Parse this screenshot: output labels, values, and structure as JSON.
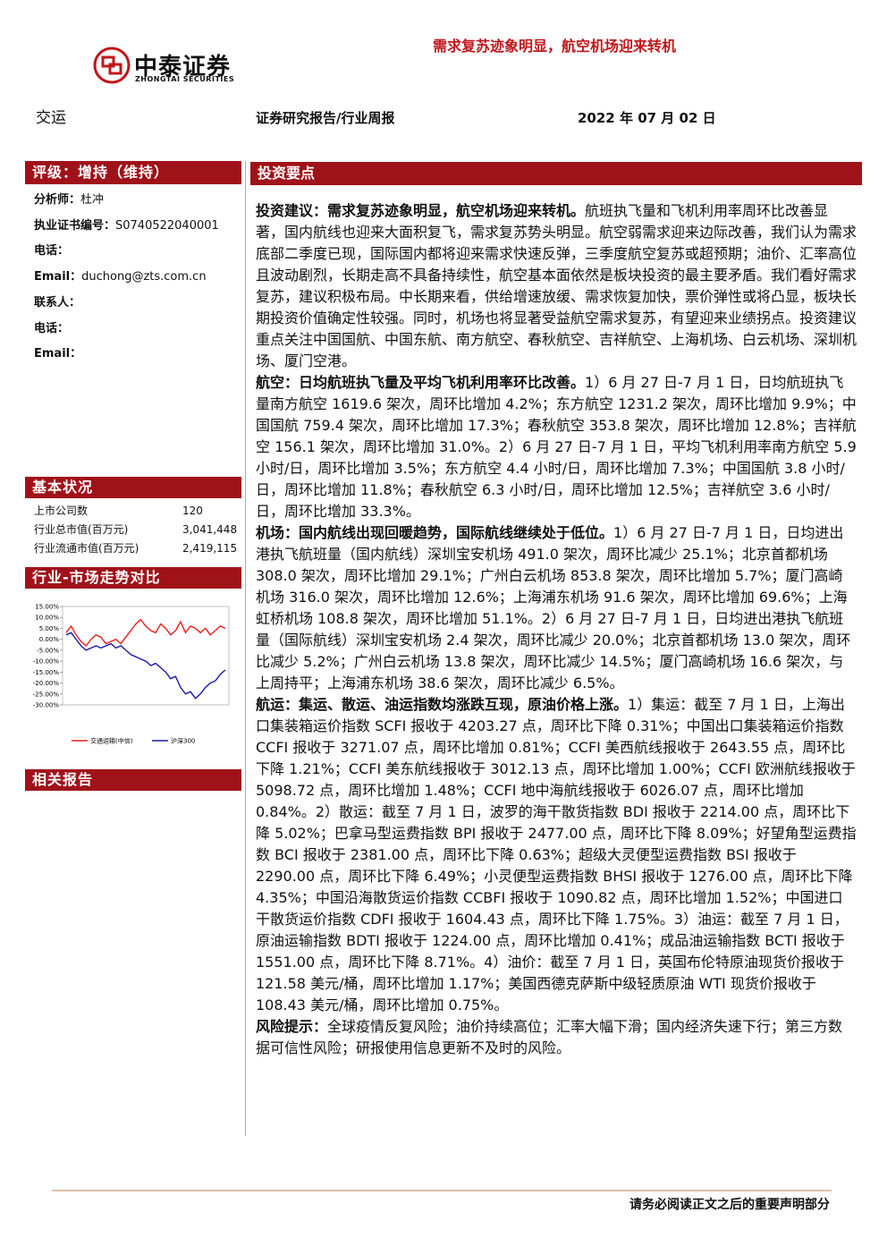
{
  "header": {
    "logo": "中泰证券",
    "logo_en": "ZHONGTAI SECURITIES",
    "headline": "需求复苏迹象明显，航空机场迎来转机",
    "sector": "交运",
    "report_type": "证券研究报告/行业周报",
    "date": "2022 年 07 月 02 日"
  },
  "sidebar": {
    "rating": "评级：增持（维持）",
    "contacts": [
      {
        "label": "分析师：",
        "value": "杜冲"
      },
      {
        "label": "执业证书编号：",
        "value": "S0740522040001"
      },
      {
        "label": "电话：",
        "value": ""
      },
      {
        "label": "Email：",
        "value": "duchong@zts.com.cn"
      },
      {
        "label": "联系人：",
        "value": ""
      },
      {
        "label": "电话：",
        "value": ""
      },
      {
        "label": "Email：",
        "value": ""
      }
    ],
    "basic_title": "基本状况",
    "basic_rows": [
      [
        "上市公司数",
        "120"
      ],
      [
        "行业总市值(百万元)",
        "3,041,448"
      ],
      [
        "行业流通市值(百万元)",
        "2,419,115"
      ]
    ],
    "chart_title": "行业-市场走势对比",
    "related_title": "相关报告"
  },
  "chart_data": {
    "type": "line",
    "ylim": [
      -30,
      15
    ],
    "yticks": [
      {
        "value": 15,
        "label": "15.00%"
      },
      {
        "value": 10,
        "label": "10.00%"
      },
      {
        "value": 5,
        "label": "5.00%"
      },
      {
        "value": 0,
        "label": "0.00%"
      },
      {
        "value": -5,
        "label": "-5.00%"
      },
      {
        "value": -10,
        "label": "-10.00%"
      },
      {
        "value": -15,
        "label": "-15.00%"
      },
      {
        "value": -20,
        "label": "-20.00%"
      },
      {
        "value": -25,
        "label": "-25.00%"
      },
      {
        "value": -30,
        "label": "-30.00%"
      }
    ],
    "series": [
      {
        "name": "交通运输(中信)",
        "color": "#e8201c",
        "values": [
          3,
          6,
          2,
          -1,
          -3,
          0,
          2,
          1,
          -2,
          -1,
          0,
          -2,
          1,
          4,
          7,
          9,
          6,
          4,
          3,
          7,
          5,
          2,
          4,
          8,
          3,
          6,
          5,
          3,
          5,
          2,
          4,
          6,
          5
        ]
      },
      {
        "name": "沪深300",
        "color": "#1a1aa8",
        "values": [
          2,
          3,
          0,
          -3,
          -5,
          -4,
          -3,
          -4,
          -3,
          -2,
          -4,
          -3,
          -5,
          -7,
          -8,
          -9,
          -10,
          -12,
          -11,
          -13,
          -15,
          -18,
          -17,
          -22,
          -25,
          -24,
          -27,
          -25,
          -22,
          -20,
          -19,
          -16,
          -14
        ]
      }
    ]
  },
  "main": {
    "section_title": "投资要点",
    "bullets": [
      {
        "lead": "投资建议：需求复苏迹象明显，航空机场迎来转机。",
        "text": "航班执飞量和飞机利用率周环比改善显著，国内航线也迎来大面积复飞，需求复苏势头明显。航空弱需求迎来边际改善，我们认为需求底部二季度已现，国际国内都将迎来需求快速反弹，三季度航空复苏或超预期；油价、汇率高位且波动剧烈，长期走高不具备持续性，航空基本面依然是板块投资的最主要矛盾。我们看好需求复苏，建议积极布局。中长期来看，供给增速放缓、需求恢复加快，票价弹性或将凸显，板块长期投资价值确定性较强。同时，机场也将显著受益航空需求复苏，有望迎来业绩拐点。投资建议重点关注中国国航、中国东航、南方航空、春秋航空、吉祥航空、上海机场、白云机场、深圳机场、厦门空港。"
      },
      {
        "lead": "航空：日均航班执飞量及平均飞机利用率环比改善。",
        "text": "1）6 月 27 日-7 月 1 日，日均航班执飞量南方航空 1619.6 架次，周环比增加 4.2%；东方航空 1231.2 架次，周环比增加 9.9%；中国国航 759.4 架次，周环比增加 17.3%；春秋航空 353.8 架次，周环比增加 12.8%；吉祥航空 156.1 架次，周环比增加 31.0%。2）6 月 27 日-7 月 1 日，平均飞机利用率南方航空 5.9 小时/日，周环比增加 3.5%；东方航空 4.4 小时/日，周环比增加 7.3%；中国国航 3.8 小时/日，周环比增加 11.8%；春秋航空 6.3 小时/日，周环比增加 12.5%；吉祥航空 3.6 小时/日，周环比增加 33.3%。"
      },
      {
        "lead": "机场：国内航线出现回暖趋势，国际航线继续处于低位。",
        "text": "1）6 月 27 日-7 月 1 日，日均进出港执飞航班量（国内航线）深圳宝安机场 491.0 架次，周环比减少 25.1%；北京首都机场 308.0 架次，周环比增加 29.1%；广州白云机场 853.8 架次，周环比增加 5.7%；厦门高崎机场 316.0 架次，周环比增加 12.6%；上海浦东机场 91.6 架次，周环比增加 69.6%；上海虹桥机场 108.8 架次，周环比增加 51.1%。2）6 月 27 日-7 月 1 日，日均进出港执飞航班量（国际航线）深圳宝安机场 2.4 架次，周环比减少 20.0%；北京首都机场 13.0 架次，周环比减少 5.2%；广州白云机场 13.8 架次，周环比减少 14.5%；厦门高崎机场 16.6 架次，与上周持平；上海浦东机场 38.6 架次，周环比减少 6.5%。"
      },
      {
        "lead": "航运：集运、散运、油运指数均涨跌互现，原油价格上涨。",
        "text": "1）集运：截至 7 月 1 日，上海出口集装箱运价指数 SCFI 报收于 4203.27 点，周环比下降 0.31%；中国出口集装箱运价指数 CCFI 报收于 3271.07 点，周环比增加 0.81%；CCFI 美西航线报收于 2643.55 点，周环比下降 1.21%；CCFI 美东航线报收于 3012.13 点，周环比增加 1.00%；CCFI 欧洲航线报收于 5098.72 点，周环比增加 1.48%；CCFI 地中海航线报收于 6026.07 点，周环比增加 0.84%。2）散运：截至 7 月 1 日，波罗的海干散货指数 BDI 报收于 2214.00 点，周环比下降 5.02%；巴拿马型运费指数 BPI 报收于 2477.00 点，周环比下降 8.09%；好望角型运费指数 BCI 报收于 2381.00 点，周环比下降 0.63%；超级大灵便型运费指数 BSI 报收于 2290.00 点，周环比下降 6.49%；小灵便型运费指数 BHSI 报收于 1276.00 点，周环比下降 4.35%；中国沿海散货运价指数 CCBFI 报收于 1090.82 点，周环比增加 1.52%；中国进口干散货运价指数 CDFI 报收于 1604.43 点，周环比下降 1.75%。3）油运：截至 7 月 1 日，原油运输指数 BDTI 报收于 1224.00 点，周环比增加 0.41%；成品油运输指数 BCTI 报收于 1551.00 点，周环比下降 8.71%。4）油价：截至 7 月 1 日，英国布伦特原油现货价报收于 121.58 美元/桶，周环比增加 1.17%；美国西德克萨斯中级轻质原油 WTI 现货价报收于 108.43 美元/桶，周环比增加 0.75%。"
      },
      {
        "lead": "风险提示：",
        "text": "全球疫情反复风险；油价持续高位；汇率大幅下滑；国内经济失速下行；第三方数据可信性风险；研报使用信息更新不及时的风险。"
      }
    ]
  },
  "footer": {
    "notice": "请务必阅读正文之后的重要声明部分"
  }
}
